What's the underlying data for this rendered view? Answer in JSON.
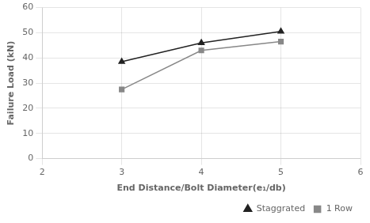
{
  "chart_data": {
    "type": "line",
    "x": [
      3,
      4,
      5
    ],
    "series": [
      {
        "name": "Staggrated",
        "color": "#222222",
        "marker": "triangle",
        "values": [
          38.5,
          46.0,
          50.5
        ]
      },
      {
        "name": "1 Row",
        "color": "#888888",
        "marker": "square",
        "values": [
          27.5,
          43.0,
          46.5
        ]
      }
    ],
    "xlabel": "End Distance/Bolt Diameter(e₁/db)",
    "ylabel": "Failure Load (kN)",
    "xlim": [
      2,
      6
    ],
    "ylim": [
      0,
      60
    ],
    "xticks": [
      2,
      3,
      4,
      5,
      6
    ],
    "yticks": [
      0,
      10,
      20,
      30,
      40,
      50,
      60
    ],
    "grid": true,
    "legend": "lower right"
  }
}
